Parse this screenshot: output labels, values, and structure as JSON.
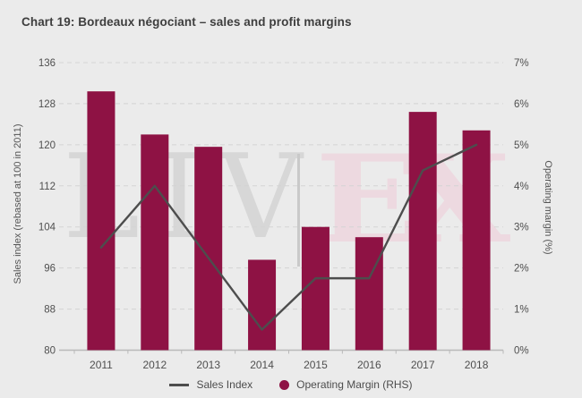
{
  "page": {
    "background": "#ebebeb"
  },
  "watermark": {
    "left": "LIV",
    "right": "EX",
    "left_color": "#d7d7d7",
    "right_color": "#edd9e0",
    "separator_color": "#c9c9c9"
  },
  "chart_data": {
    "type": "combo",
    "title": "Chart 19: Bordeaux négociant – sales and profit margins",
    "categories": [
      "2011",
      "2012",
      "2013",
      "2014",
      "2015",
      "2016",
      "2017",
      "2018"
    ],
    "series": [
      {
        "name": "Sales Index",
        "type": "line",
        "axis": "left",
        "color": "#4d4d4d",
        "values": [
          100,
          112,
          98,
          84,
          94,
          94,
          115,
          120
        ]
      },
      {
        "name": "Operating Margin (RHS)",
        "type": "bar",
        "axis": "right",
        "color": "#8e1244",
        "values": [
          6.3,
          5.25,
          4.95,
          2.2,
          3.0,
          2.75,
          5.8,
          5.35
        ]
      }
    ],
    "left_axis": {
      "label": "Sales index (rebased at 100 in 2011)",
      "min": 80,
      "max": 136,
      "ticks": [
        80,
        88,
        96,
        104,
        112,
        120,
        128,
        136
      ]
    },
    "right_axis": {
      "label": "Operating margin (%)",
      "min": 0,
      "max": 7,
      "tick_labels": [
        "0%",
        "1%",
        "2%",
        "3%",
        "4%",
        "5%",
        "6%",
        "7%"
      ]
    },
    "grid": "horizontal-dashed",
    "legend_position": "bottom-center",
    "grid_color": "#d4d4d4",
    "baseline_color": "#b9b9b9"
  }
}
